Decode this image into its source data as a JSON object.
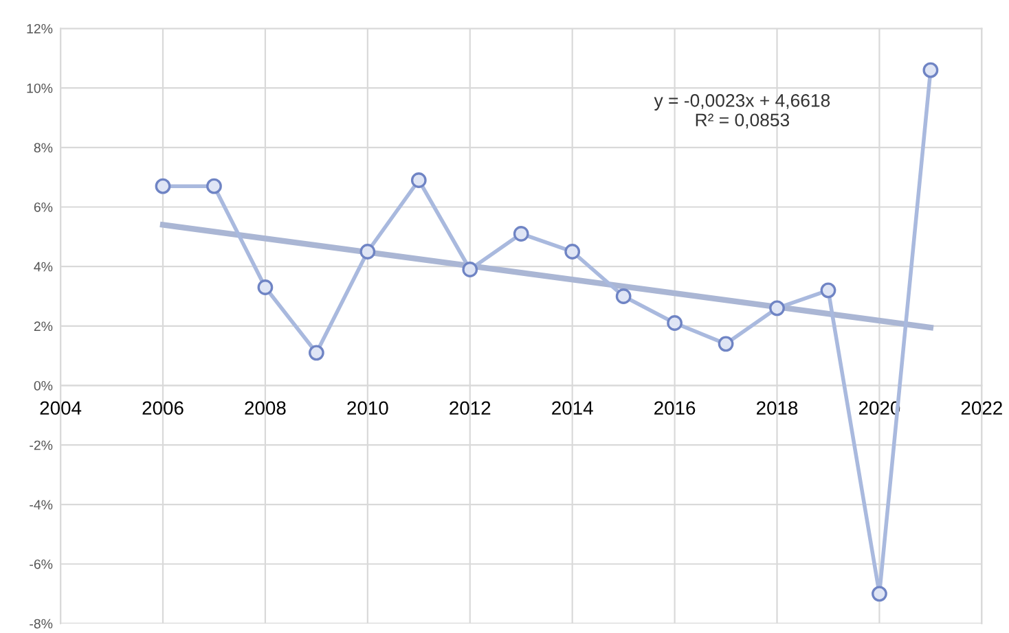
{
  "chart_data": {
    "type": "line",
    "x": [
      2006,
      2007,
      2008,
      2009,
      2010,
      2011,
      2012,
      2013,
      2014,
      2015,
      2016,
      2017,
      2018,
      2019,
      2020,
      2021
    ],
    "series": [
      {
        "color": "#a9b9de",
        "marker": "circle",
        "values": [
          6.7,
          6.7,
          3.3,
          1.1,
          4.5,
          6.9,
          3.9,
          5.1,
          4.5,
          3.0,
          2.1,
          1.4,
          2.6,
          3.2,
          -7.0,
          10.6
        ]
      },
      {
        "type": "line",
        "color": "#aab6d4",
        "marker": "none",
        "x": [
          2006,
          2021
        ],
        "values": [
          5.4,
          1.95
        ]
      }
    ],
    "annotations": [
      {
        "text": "y = -0,0023x + 4,6618\nR² = 0,0853"
      }
    ],
    "xlim": [
      2004,
      2022
    ],
    "xticks": [
      2004,
      2006,
      2008,
      2010,
      2012,
      2014,
      2016,
      2018,
      2020,
      2022
    ],
    "ylim": [
      -8,
      12
    ],
    "yticks": [
      {
        "value": -8,
        "label": "-8%"
      },
      {
        "value": -6,
        "label": "-6%"
      },
      {
        "value": -4,
        "label": "-4%"
      },
      {
        "value": -2,
        "label": "-2%"
      },
      {
        "value": 0,
        "label": "0%"
      },
      {
        "value": 2,
        "label": "2%"
      },
      {
        "value": 4,
        "label": "4%"
      },
      {
        "value": 6,
        "label": "6%"
      },
      {
        "value": 8,
        "label": "8%"
      },
      {
        "value": 10,
        "label": "10%"
      },
      {
        "value": 12,
        "label": "12%"
      }
    ],
    "grid": true
  }
}
